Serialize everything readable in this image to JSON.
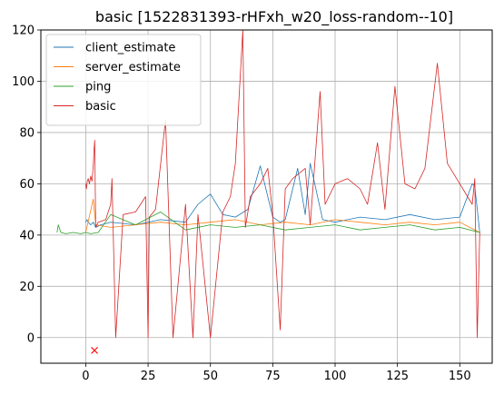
{
  "chart_data": {
    "type": "line",
    "title": "basic [1522831393-rHFxh_w20_loss-random--10]",
    "xlabel": "",
    "ylabel": "",
    "xlim": [
      -18,
      163
    ],
    "ylim": [
      -10,
      120
    ],
    "xticks": [
      0,
      25,
      50,
      75,
      100,
      125,
      150
    ],
    "yticks": [
      0,
      20,
      40,
      60,
      80,
      100,
      120
    ],
    "grid": true,
    "legend_position": "top-left",
    "series": [
      {
        "name": "client_estimate",
        "color": "#1f77b4",
        "x": [
          0,
          0.5,
          1,
          2,
          3,
          4,
          6,
          10,
          20,
          30,
          40,
          45,
          50,
          55,
          60,
          65,
          70,
          75,
          78,
          80,
          85,
          88,
          90,
          95,
          100,
          110,
          120,
          130,
          140,
          150,
          155,
          156,
          158
        ],
        "y": [
          45,
          46,
          45,
          44,
          45,
          43,
          44,
          45,
          44,
          46,
          45,
          52,
          56,
          48,
          47,
          50,
          67,
          47,
          45,
          46,
          66,
          48,
          68,
          46,
          45,
          47,
          46,
          48,
          46,
          47,
          60,
          59,
          41
        ]
      },
      {
        "name": "server_estimate",
        "color": "#ff7f0e",
        "x": [
          0,
          3,
          4,
          10,
          20,
          30,
          40,
          50,
          60,
          70,
          80,
          90,
          100,
          110,
          120,
          130,
          140,
          150,
          158
        ],
        "y": [
          41,
          54,
          44,
          43,
          44,
          45,
          44,
          45,
          46,
          44,
          45,
          44,
          46,
          45,
          44,
          45,
          44,
          45,
          41
        ]
      },
      {
        "name": "ping",
        "color": "#2ca02c",
        "x": [
          -11.5,
          -11,
          -10,
          -8,
          -5,
          -2,
          0,
          2,
          5,
          10,
          20,
          30,
          40,
          50,
          60,
          70,
          80,
          90,
          100,
          110,
          120,
          130,
          140,
          150,
          158
        ],
        "y": [
          41,
          44,
          41,
          40.5,
          41,
          40.5,
          41,
          40.5,
          41,
          48,
          44,
          49,
          42,
          44,
          43,
          44,
          42,
          43,
          44,
          42,
          43,
          44,
          42,
          43,
          41
        ]
      },
      {
        "name": "basic",
        "color": "#d62728",
        "x": [
          0,
          0.3,
          0.6,
          1,
          1.5,
          2,
          2.5,
          3,
          3.3,
          3.6,
          4,
          5,
          8,
          10,
          10.5,
          12,
          15,
          20,
          24,
          25,
          25.5,
          28,
          32,
          35,
          40,
          43,
          45,
          50,
          55,
          58,
          60,
          63,
          64,
          66,
          70,
          73,
          75,
          78,
          80,
          83,
          88,
          90,
          94,
          96,
          100,
          105,
          110,
          113,
          117,
          120,
          124,
          128,
          132,
          136,
          141,
          145,
          150,
          155,
          156,
          157,
          158
        ],
        "y": [
          60,
          58,
          61,
          62,
          60,
          63,
          61,
          67,
          73,
          77,
          43,
          45,
          46,
          52,
          62,
          0,
          48,
          49,
          55,
          0,
          47,
          50,
          85,
          0,
          52,
          0,
          48,
          0,
          49,
          55,
          68,
          125,
          43,
          55,
          60,
          66,
          48,
          3,
          58,
          62,
          66,
          44,
          96,
          52,
          60,
          62,
          58,
          52,
          76,
          50,
          98,
          60,
          58,
          66,
          107,
          68,
          60,
          52,
          62,
          0,
          41
        ]
      }
    ],
    "annotations": [
      {
        "type": "marker",
        "symbol": "x",
        "x": 3.5,
        "y": -5,
        "color": "#ff0000"
      }
    ]
  }
}
